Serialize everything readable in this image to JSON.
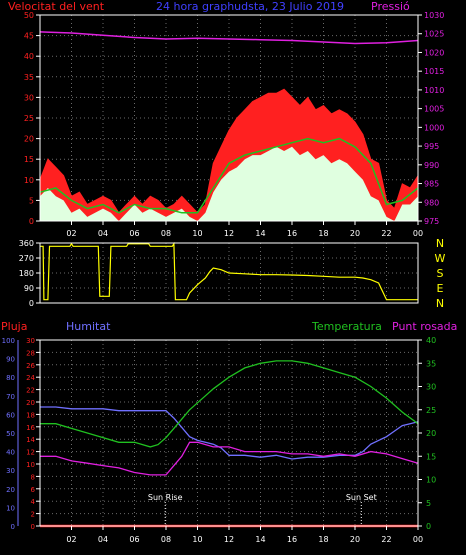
{
  "colors": {
    "background": "#000000",
    "axis": "#ffffff",
    "grid": "#6a6a6a",
    "wind_gust": "#ff2020",
    "wind_avg": "#20c020",
    "wind_min": "#e0ffe0",
    "pressure": "#e020e0",
    "direction": "#ffff00",
    "rain": "#ff2020",
    "humidity": "#7070ff",
    "temperature": "#20c020",
    "dewpoint": "#e020e0",
    "left_title": "#ff2020",
    "center_title": "#4040ff",
    "right_title": "#e020e0",
    "top_right_ticks": "#e020e0",
    "rain_ticks": "#ff2020",
    "hum_ticks": "#7070ff",
    "temp_ticks": "#20c020"
  },
  "chart_data": [
    {
      "type": "area",
      "id": "wind",
      "title": "24 hora graphudsta, 23 Julio 2019",
      "ylabel": "Velocitat del vent",
      "y2label": "Pressió",
      "ylim": [
        0,
        50
      ],
      "y2lim": [
        975,
        1030
      ],
      "yticks": [
        0,
        5,
        10,
        15,
        20,
        25,
        30,
        35,
        40,
        45,
        50
      ],
      "y2ticks": [
        975,
        980,
        985,
        990,
        995,
        1000,
        1005,
        1010,
        1015,
        1020,
        1025,
        1030
      ],
      "xticks": [
        "02",
        "04",
        "06",
        "08",
        "10",
        "12",
        "14",
        "16",
        "18",
        "20",
        "22",
        "00"
      ],
      "xlim": [
        0,
        24
      ],
      "grid": true,
      "series": [
        {
          "name": "",
          "role": "gust",
          "x": [
            0,
            0.5,
            1,
            1.5,
            2,
            2.5,
            3,
            3.5,
            4,
            4.5,
            5,
            5.5,
            6,
            6.5,
            7,
            7.5,
            8,
            8.5,
            9,
            9.5,
            10,
            10.5,
            11,
            11.5,
            12,
            12.5,
            13,
            13.5,
            14,
            14.5,
            15,
            15.5,
            16,
            16.5,
            17,
            17.5,
            18,
            18.5,
            19,
            19.5,
            20,
            20.5,
            21,
            21.5,
            22,
            22.5,
            23,
            23.5,
            24
          ],
          "values": [
            10,
            15,
            13,
            11,
            6,
            7,
            4,
            5,
            6,
            5,
            2,
            4,
            6,
            4,
            6,
            5,
            3,
            4,
            6,
            4,
            2,
            4,
            14,
            18,
            22,
            25,
            27,
            29,
            30,
            31,
            31,
            32,
            30,
            28,
            30,
            27,
            28,
            26,
            27,
            26,
            24,
            21,
            15,
            14,
            5,
            3,
            9,
            8,
            11
          ]
        },
        {
          "name": "",
          "role": "avg",
          "x": [
            0,
            1,
            2,
            3,
            4,
            5,
            6,
            7,
            8,
            9,
            10,
            11,
            12,
            13,
            14,
            15,
            16,
            17,
            18,
            19,
            20,
            21,
            22,
            23,
            24
          ],
          "values": [
            7,
            8,
            5,
            3,
            4,
            2,
            4,
            3,
            3,
            2,
            2,
            8,
            14,
            16,
            17,
            18,
            19,
            20,
            19,
            20,
            18,
            14,
            4,
            5,
            8
          ]
        },
        {
          "name": "",
          "role": "min",
          "x": [
            0,
            0.5,
            1,
            1.5,
            2,
            2.5,
            3,
            3.5,
            4,
            4.5,
            5,
            5.5,
            6,
            6.5,
            7,
            7.5,
            8,
            8.5,
            9,
            9.5,
            10,
            10.5,
            11,
            11.5,
            12,
            12.5,
            13,
            13.5,
            14,
            14.5,
            15,
            15.5,
            16,
            16.5,
            17,
            17.5,
            18,
            18.5,
            19,
            19.5,
            20,
            20.5,
            21,
            21.5,
            22,
            22.5,
            23,
            23.5,
            24
          ],
          "values": [
            6,
            8,
            6,
            5,
            2,
            3,
            1,
            2,
            3,
            2,
            0,
            2,
            4,
            2,
            3,
            2,
            1,
            2,
            3,
            1,
            0,
            2,
            7,
            10,
            12,
            13,
            15,
            16,
            16,
            17,
            18,
            17,
            18,
            16,
            17,
            15,
            16,
            14,
            15,
            14,
            12,
            10,
            6,
            5,
            1,
            0,
            4,
            4,
            6
          ]
        },
        {
          "name": "",
          "role": "pressure",
          "axis": "y2",
          "x": [
            0,
            2,
            4,
            6,
            8,
            10,
            12,
            14,
            16,
            18,
            20,
            22,
            24
          ],
          "values": [
            1025.5,
            1025.2,
            1024.6,
            1024.0,
            1023.6,
            1023.8,
            1023.6,
            1023.4,
            1023.2,
            1022.8,
            1022.4,
            1022.6,
            1023.2
          ]
        }
      ]
    },
    {
      "type": "line",
      "id": "direction",
      "yticks": [
        0,
        90,
        180,
        270,
        360
      ],
      "ylim": [
        0,
        360
      ],
      "xlim": [
        0,
        24
      ],
      "compass": [
        "N",
        "W",
        "S",
        "E",
        "N"
      ],
      "series": [
        {
          "name": "",
          "role": "direction",
          "x": [
            0,
            0.2,
            0.25,
            0.5,
            0.6,
            1.9,
            2.0,
            2.1,
            3.7,
            3.8,
            4.4,
            4.5,
            5.0,
            5.5,
            5.6,
            5.7,
            6.9,
            7.0,
            7.5,
            8.0,
            8.4,
            8.5,
            8.6,
            9.0,
            9.3,
            9.5,
            10.0,
            10.5,
            10.8,
            11.0,
            11.5,
            12.0,
            13.0,
            14.0,
            15.0,
            16.0,
            17.0,
            18.0,
            19.0,
            20.0,
            20.5,
            21.0,
            21.5,
            22.0,
            22.5,
            24.0
          ],
          "values": [
            340,
            340,
            20,
            20,
            340,
            340,
            355,
            340,
            340,
            40,
            40,
            340,
            340,
            340,
            355,
            355,
            355,
            340,
            340,
            340,
            340,
            355,
            20,
            20,
            20,
            60,
            110,
            150,
            190,
            210,
            200,
            180,
            175,
            170,
            170,
            168,
            165,
            160,
            155,
            155,
            150,
            140,
            120,
            20,
            20,
            20
          ]
        }
      ]
    },
    {
      "type": "line",
      "id": "climate",
      "yticks_rain": [
        0,
        2,
        4,
        6,
        8,
        10,
        12,
        14,
        16,
        18,
        20,
        22,
        24,
        26,
        28,
        30
      ],
      "yticks_hum": [
        0,
        10,
        20,
        30,
        40,
        50,
        60,
        70,
        80,
        90,
        100
      ],
      "yticks_temp": [
        0,
        5,
        10,
        15,
        20,
        25,
        30,
        35,
        40
      ],
      "ylim_rain": [
        0,
        30
      ],
      "ylim_hum": [
        0,
        100
      ],
      "ylim_temp": [
        0,
        40
      ],
      "xticks": [
        "02",
        "04",
        "06",
        "08",
        "10",
        "12",
        "14",
        "16",
        "18",
        "20",
        "22",
        "00"
      ],
      "xlim": [
        0,
        24
      ],
      "labels": {
        "rain": "Pluja",
        "humidity": "Humitat",
        "temperature": "Temperatura",
        "dewpoint": "Punt rosada"
      },
      "annotations": [
        {
          "text": "Sun Rise",
          "x": 7.95
        },
        {
          "text": "Sun Set",
          "x": 20.4
        }
      ],
      "series": [
        {
          "name": "Pluja",
          "role": "rain",
          "axis": "rain",
          "x": [
            0,
            24
          ],
          "values": [
            0,
            0
          ]
        },
        {
          "name": "Humitat",
          "role": "humidity",
          "axis": "hum",
          "x": [
            0,
            1,
            2,
            3,
            4,
            5,
            6,
            7,
            8,
            8.5,
            9,
            9.5,
            10,
            10.5,
            11,
            11.5,
            12,
            13,
            14,
            15,
            16,
            17,
            18,
            19,
            20,
            20.5,
            21,
            21.5,
            22,
            22.5,
            23,
            23.5,
            24
          ],
          "values": [
            64,
            64,
            63,
            63,
            63,
            62,
            62,
            62,
            62,
            58,
            53,
            48,
            46,
            45,
            44,
            42,
            38,
            38,
            37,
            38,
            36,
            37,
            37,
            38,
            38,
            40,
            44,
            46,
            48,
            51,
            54,
            55,
            56
          ]
        },
        {
          "name": "Temperatura",
          "role": "temperature",
          "axis": "temp",
          "x": [
            0,
            1,
            2,
            3,
            4,
            5,
            6,
            7,
            7.5,
            8,
            8.5,
            9,
            9.5,
            10,
            10.5,
            11,
            12,
            13,
            14,
            15,
            16,
            17,
            18,
            19,
            20,
            21,
            22,
            23,
            24
          ],
          "values": [
            22,
            22,
            21,
            20,
            19,
            18,
            18,
            17,
            17.5,
            19,
            21,
            23,
            25,
            26.5,
            28,
            29.5,
            32,
            34,
            35,
            35.5,
            35.5,
            35,
            34,
            33,
            32,
            30,
            27.5,
            24.5,
            22
          ]
        },
        {
          "name": "Punt rosada",
          "role": "dewpoint",
          "axis": "temp",
          "x": [
            0,
            1,
            2,
            3,
            4,
            5,
            6,
            7,
            8,
            8.5,
            9,
            9.5,
            10,
            11,
            12,
            13,
            14,
            15,
            16,
            17,
            18,
            19,
            20,
            21,
            22,
            23,
            24
          ],
          "values": [
            15,
            15,
            14,
            13.5,
            13,
            12.5,
            11.5,
            11,
            11,
            13,
            15,
            18,
            18,
            17,
            17,
            16,
            16,
            16,
            15.5,
            15.5,
            15,
            15.5,
            15,
            16,
            15.5,
            14.5,
            13.5
          ]
        }
      ]
    }
  ]
}
